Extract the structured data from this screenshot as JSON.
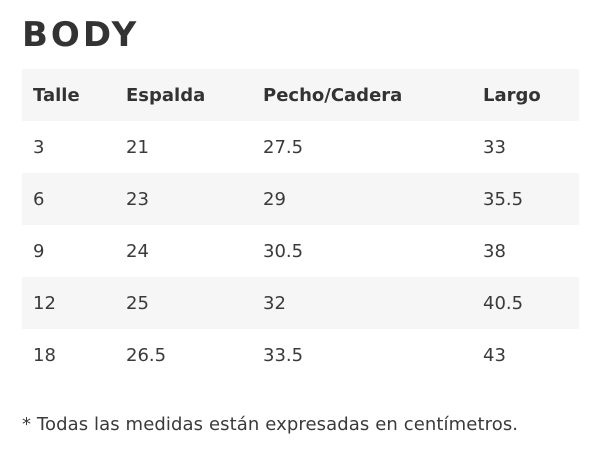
{
  "title": "BODY",
  "table": {
    "headers": [
      "Talle",
      "Espalda",
      "Pecho/Cadera",
      "Largo"
    ],
    "rows": [
      [
        "3",
        "21",
        "27.5",
        "33"
      ],
      [
        "6",
        "23",
        "29",
        "35.5"
      ],
      [
        "9",
        "24",
        "30.5",
        "38"
      ],
      [
        "12",
        "25",
        "32",
        "40.5"
      ],
      [
        "18",
        "26.5",
        "33.5",
        "43"
      ]
    ]
  },
  "footnote": "* Todas las medidas están expresadas en centímetros.",
  "colors": {
    "text": "#3a3a3a",
    "heading": "#333333",
    "row_shade": "#f6f6f6"
  }
}
